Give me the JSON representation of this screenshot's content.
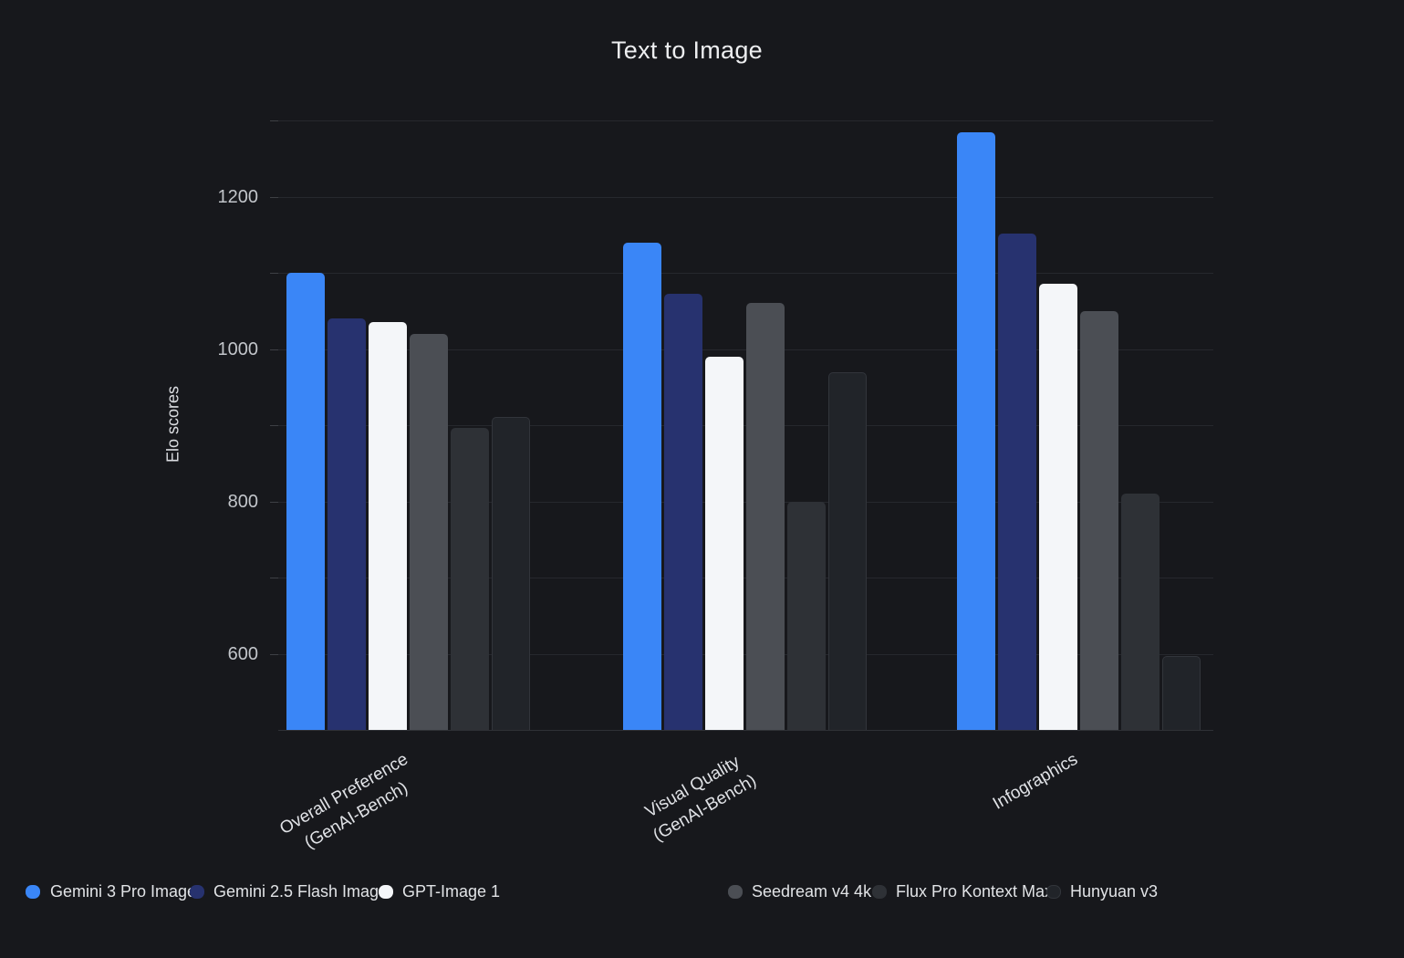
{
  "chart_data": {
    "type": "bar",
    "title": "Text to Image",
    "ylabel": "Elo scores",
    "categories": [
      [
        "Overall Preference",
        "(GenAI-Bench)"
      ],
      [
        "Visual Quality",
        "(GenAI-Bench)"
      ],
      [
        "Infographics"
      ]
    ],
    "series": [
      {
        "name": "Gemini 3 Pro Image",
        "color": "#3a86f7",
        "values": [
          1100,
          1140,
          1285
        ]
      },
      {
        "name": "Gemini 2.5 Flash Image",
        "color": "#27326f",
        "values": [
          1040,
          1073,
          1152
        ]
      },
      {
        "name": "GPT-Image 1",
        "color": "#f4f6f9",
        "values": [
          1035,
          990,
          1086
        ]
      },
      {
        "name": "Seedream v4 4k",
        "color": "#4b4e54",
        "values": [
          1020,
          1060,
          1050
        ]
      },
      {
        "name": "Flux Pro Kontext Max",
        "color": "#2e3136",
        "values": [
          896,
          800,
          810
        ]
      },
      {
        "name": "Hunyuan v3",
        "color": "#212429",
        "border": "#32353b",
        "values": [
          911,
          970,
          597
        ]
      }
    ],
    "ylim": [
      500,
      1300
    ],
    "ytick_labels": [
      600,
      800,
      1000,
      1200
    ],
    "grid_step": 100,
    "grid": true,
    "legend_position": "bottom"
  },
  "theme": {
    "background": "#17181c",
    "gridline_color": "#26282d",
    "baseline_color": "#2f3136",
    "tick_color": "#3e4045",
    "tick_label_color": "#c2c5ca",
    "title_color": "#edeef0",
    "axis_title_color": "#dcdee2",
    "category_label_color": "#e0e2e6",
    "legend_text_color": "#e1e3e6"
  }
}
